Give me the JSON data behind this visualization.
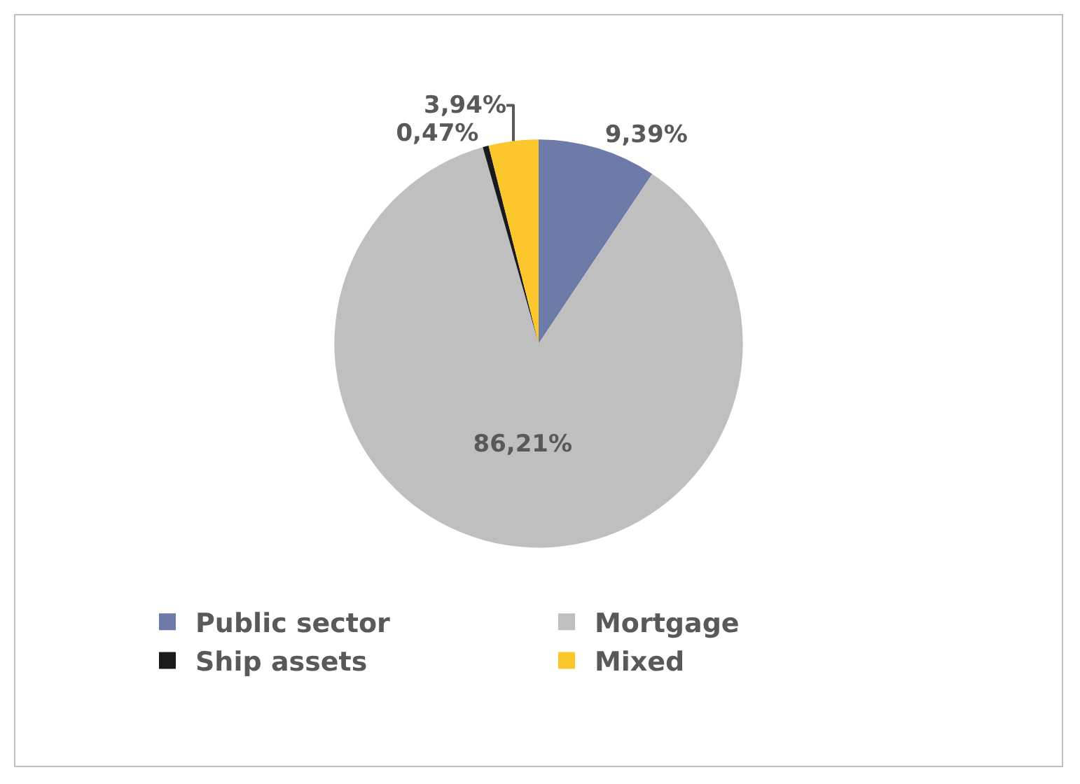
{
  "chart_data": {
    "type": "pie",
    "categories": [
      "Public sector",
      "Mortgage",
      "Ship assets",
      "Mixed"
    ],
    "values": [
      9.39,
      86.21,
      0.47,
      3.94
    ],
    "colors": [
      "#6e7aa8",
      "#bfbfbf",
      "#1a1a1a",
      "#fcc62d"
    ],
    "value_labels": [
      "9,39%",
      "86,21%",
      "0,47%",
      "3,94%"
    ],
    "legend": "bottom"
  }
}
